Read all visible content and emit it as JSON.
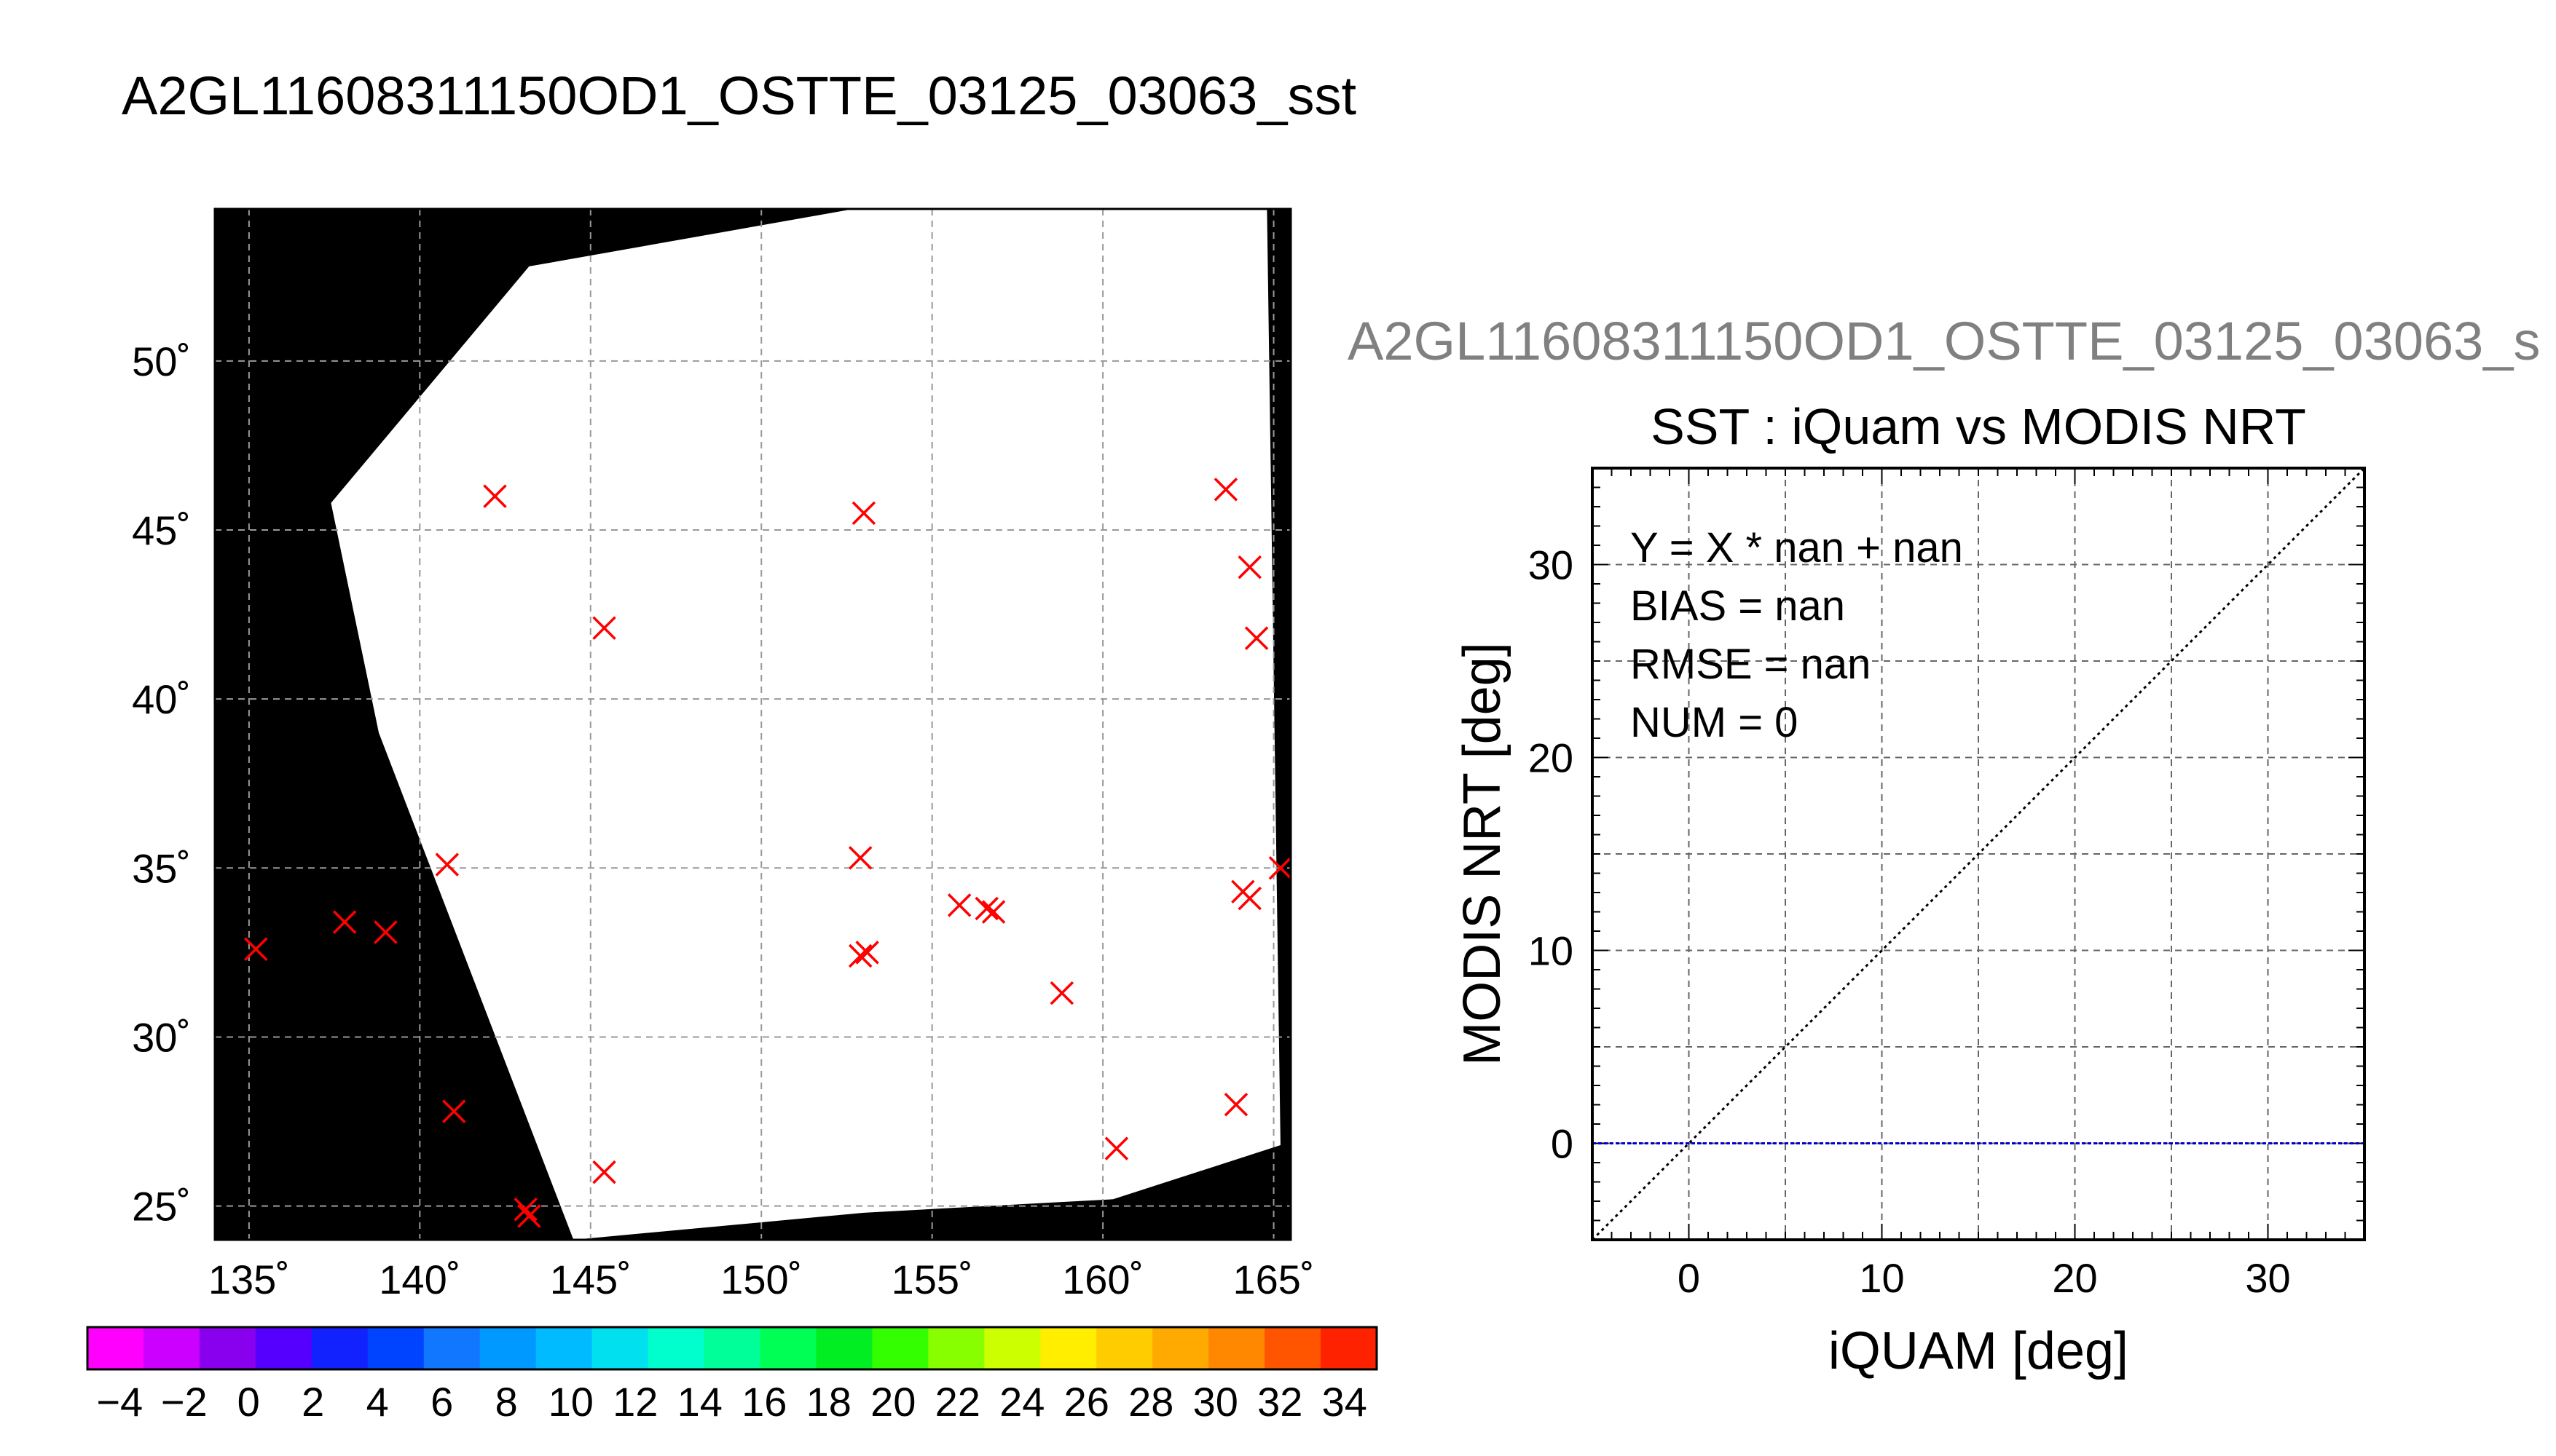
{
  "header": {
    "title": "A2GL11608311150OD1_OSTTE_03125_03063_sst",
    "side_title": "A2GL11608311150OD1_OSTTE_03125_03063_s"
  },
  "chart_data": [
    {
      "type": "heatmap",
      "name": "sst-map",
      "projection": "lon-lat",
      "xlim": [
        134,
        165.5
      ],
      "ylim": [
        24,
        54.5
      ],
      "x_ticks": [
        135,
        140,
        145,
        150,
        155,
        160,
        165
      ],
      "x_tick_labels": [
        "135˚",
        "140˚",
        "145˚",
        "150˚",
        "155˚",
        "160˚",
        "165˚"
      ],
      "y_ticks": [
        25,
        30,
        35,
        40,
        45,
        50
      ],
      "y_tick_labels": [
        "25˚",
        "30˚",
        "35˚",
        "40˚",
        "45˚",
        "50˚"
      ],
      "grid": true,
      "grid_style": "dashed",
      "background_color": "#000000",
      "swath_color": "#ffffff",
      "swath_corners": [
        [
          144.5,
          24
        ],
        [
          138.8,
          39
        ],
        [
          137.4,
          45.8
        ],
        [
          143.2,
          52.8
        ],
        [
          155.5,
          55
        ],
        [
          164.8,
          54.8
        ],
        [
          165.2,
          26.8
        ],
        [
          160.3,
          25.2
        ],
        [
          153,
          24.8
        ]
      ],
      "marker_color": "#ff0000",
      "marker_symbol": "x",
      "markers": [
        {
          "lon": 135.2,
          "lat": 32.6
        },
        {
          "lon": 137.8,
          "lat": 33.4
        },
        {
          "lon": 139.0,
          "lat": 33.1
        },
        {
          "lon": 140.8,
          "lat": 35.1
        },
        {
          "lon": 141.0,
          "lat": 27.8
        },
        {
          "lon": 142.2,
          "lat": 46.0
        },
        {
          "lon": 143.1,
          "lat": 24.9
        },
        {
          "lon": 143.2,
          "lat": 24.7
        },
        {
          "lon": 145.4,
          "lat": 42.1
        },
        {
          "lon": 145.4,
          "lat": 26.0
        },
        {
          "lon": 153.0,
          "lat": 45.5
        },
        {
          "lon": 152.9,
          "lat": 35.3
        },
        {
          "lon": 152.9,
          "lat": 32.4
        },
        {
          "lon": 153.1,
          "lat": 32.5
        },
        {
          "lon": 155.8,
          "lat": 33.9
        },
        {
          "lon": 156.6,
          "lat": 33.8
        },
        {
          "lon": 156.8,
          "lat": 33.7
        },
        {
          "lon": 158.8,
          "lat": 31.3
        },
        {
          "lon": 160.4,
          "lat": 26.7
        },
        {
          "lon": 163.6,
          "lat": 46.2
        },
        {
          "lon": 164.3,
          "lat": 43.9
        },
        {
          "lon": 164.5,
          "lat": 41.8
        },
        {
          "lon": 164.1,
          "lat": 34.3
        },
        {
          "lon": 164.3,
          "lat": 34.1
        },
        {
          "lon": 165.2,
          "lat": 35.0
        },
        {
          "lon": 163.9,
          "lat": 28.0
        }
      ]
    },
    {
      "type": "scatter",
      "name": "sst-comparison",
      "title": "SST : iQuam vs MODIS NRT",
      "xlabel": "iQUAM [deg]",
      "ylabel": "MODIS NRT [deg]",
      "xlim": [
        -5,
        35
      ],
      "ylim": [
        -5,
        35
      ],
      "ticks": [
        0,
        10,
        20,
        30
      ],
      "grid_step": 5,
      "grid": true,
      "one_to_one_line_color": "#000000",
      "zero_line_color": "#0000cc",
      "zero_line_y": 0,
      "annotations": [
        "Y = X * nan + nan",
        "BIAS = nan",
        "RMSE = nan",
        "NUM = 0"
      ],
      "points": []
    }
  ],
  "colorbar": {
    "min": -5,
    "max": 35,
    "step": 2,
    "tick_labels": [
      "−4",
      "−2",
      "0",
      "2",
      "4",
      "6",
      "8",
      "10",
      "12",
      "14",
      "16",
      "18",
      "20",
      "22",
      "24",
      "26",
      "28",
      "30",
      "32",
      "34"
    ],
    "colors": [
      "#ff00ff",
      "#cc00ff",
      "#8800ee",
      "#5500ff",
      "#1122ff",
      "#0044ff",
      "#1177ff",
      "#0099ff",
      "#00bbff",
      "#00e0ee",
      "#00ffcc",
      "#00ff99",
      "#00ff55",
      "#00ee22",
      "#33ff00",
      "#88ff00",
      "#ccff00",
      "#ffee00",
      "#ffcc00",
      "#ffaa00",
      "#ff8800",
      "#ff5500",
      "#ff2200"
    ]
  }
}
